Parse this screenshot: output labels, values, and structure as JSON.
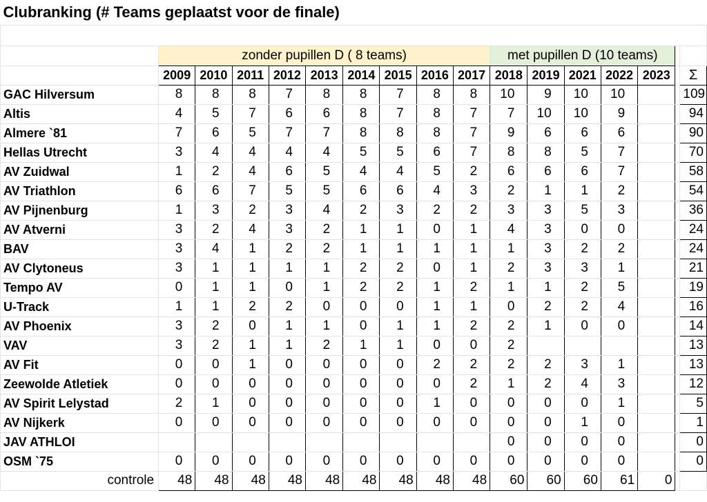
{
  "title": "Clubranking (# Teams geplaatst voor de finale)",
  "groups": {
    "without": "zonder pupillen D ( 8 teams)",
    "with": "met pupillen D (10 teams)"
  },
  "years": [
    "2009",
    "2010",
    "2011",
    "2012",
    "2013",
    "2014",
    "2015",
    "2016",
    "2017",
    "2018",
    "2019",
    "2021",
    "2022",
    "2023"
  ],
  "total_header": "Σ",
  "rows": [
    {
      "club": "GAC Hilversum",
      "values": [
        "8",
        "8",
        "8",
        "7",
        "8",
        "8",
        "7",
        "8",
        "8",
        "10",
        "9",
        "10",
        "10",
        ""
      ],
      "total": "109"
    },
    {
      "club": "Altis",
      "values": [
        "4",
        "5",
        "7",
        "6",
        "6",
        "8",
        "7",
        "8",
        "7",
        "7",
        "10",
        "10",
        "9",
        ""
      ],
      "total": "94"
    },
    {
      "club": "Almere `81",
      "values": [
        "7",
        "6",
        "5",
        "7",
        "7",
        "8",
        "8",
        "8",
        "7",
        "9",
        "6",
        "6",
        "6",
        ""
      ],
      "total": "90"
    },
    {
      "club": "Hellas Utrecht",
      "values": [
        "3",
        "4",
        "4",
        "4",
        "4",
        "5",
        "5",
        "6",
        "7",
        "8",
        "8",
        "5",
        "7",
        ""
      ],
      "total": "70"
    },
    {
      "club": "AV Zuidwal",
      "values": [
        "1",
        "2",
        "4",
        "6",
        "5",
        "4",
        "4",
        "5",
        "2",
        "6",
        "6",
        "6",
        "7",
        ""
      ],
      "total": "58"
    },
    {
      "club": "AV Triathlon",
      "values": [
        "6",
        "6",
        "7",
        "5",
        "5",
        "6",
        "6",
        "4",
        "3",
        "2",
        "1",
        "1",
        "2",
        ""
      ],
      "total": "54"
    },
    {
      "club": "AV Pijnenburg",
      "values": [
        "1",
        "3",
        "2",
        "3",
        "4",
        "2",
        "3",
        "2",
        "2",
        "3",
        "3",
        "5",
        "3",
        ""
      ],
      "total": "36"
    },
    {
      "club": "AV Atverni",
      "values": [
        "3",
        "2",
        "4",
        "3",
        "2",
        "1",
        "1",
        "0",
        "1",
        "4",
        "3",
        "0",
        "0",
        ""
      ],
      "total": "24"
    },
    {
      "club": "BAV",
      "values": [
        "3",
        "4",
        "1",
        "2",
        "2",
        "1",
        "1",
        "1",
        "1",
        "1",
        "3",
        "2",
        "2",
        ""
      ],
      "total": "24"
    },
    {
      "club": "AV Clytoneus",
      "values": [
        "3",
        "1",
        "1",
        "1",
        "1",
        "2",
        "2",
        "0",
        "1",
        "2",
        "3",
        "3",
        "1",
        ""
      ],
      "total": "21"
    },
    {
      "club": "Tempo AV",
      "values": [
        "0",
        "1",
        "1",
        "0",
        "1",
        "2",
        "2",
        "1",
        "2",
        "1",
        "1",
        "2",
        "5",
        ""
      ],
      "total": "19"
    },
    {
      "club": "U-Track",
      "values": [
        "1",
        "1",
        "2",
        "2",
        "0",
        "0",
        "0",
        "1",
        "1",
        "0",
        "2",
        "2",
        "4",
        ""
      ],
      "total": "16"
    },
    {
      "club": "AV Phoenix",
      "values": [
        "3",
        "2",
        "0",
        "1",
        "1",
        "0",
        "1",
        "1",
        "2",
        "2",
        "1",
        "0",
        "0",
        ""
      ],
      "total": "14"
    },
    {
      "club": "VAV",
      "values": [
        "3",
        "2",
        "1",
        "1",
        "2",
        "1",
        "1",
        "0",
        "0",
        "2",
        "",
        "",
        "",
        ""
      ],
      "total": "13"
    },
    {
      "club": "AV Fit",
      "values": [
        "0",
        "0",
        "1",
        "0",
        "0",
        "0",
        "0",
        "2",
        "2",
        "2",
        "2",
        "3",
        "1",
        ""
      ],
      "total": "13"
    },
    {
      "club": "Zeewolde Atletiek",
      "values": [
        "0",
        "0",
        "0",
        "0",
        "0",
        "0",
        "0",
        "0",
        "2",
        "1",
        "2",
        "4",
        "3",
        ""
      ],
      "total": "12"
    },
    {
      "club": "AV Spirit Lelystad",
      "values": [
        "2",
        "1",
        "0",
        "0",
        "0",
        "0",
        "0",
        "1",
        "0",
        "0",
        "0",
        "0",
        "1",
        ""
      ],
      "total": "5"
    },
    {
      "club": "AV Nijkerk",
      "values": [
        "0",
        "0",
        "0",
        "0",
        "0",
        "0",
        "0",
        "0",
        "0",
        "0",
        "0",
        "1",
        "0",
        ""
      ],
      "total": "1"
    },
    {
      "club": "JAV ATHLOI",
      "values": [
        "",
        "",
        "",
        "",
        "",
        "",
        "",
        "",
        "",
        "0",
        "0",
        "0",
        "0",
        ""
      ],
      "total": "0"
    },
    {
      "club": "OSM `75",
      "values": [
        "0",
        "0",
        "0",
        "0",
        "0",
        "0",
        "0",
        "0",
        "0",
        "0",
        "0",
        "0",
        "0",
        ""
      ],
      "total": "0"
    }
  ],
  "control": {
    "label": "controle",
    "values": [
      "48",
      "48",
      "48",
      "48",
      "48",
      "48",
      "48",
      "48",
      "48",
      "60",
      "60",
      "60",
      "61",
      "0"
    ]
  }
}
